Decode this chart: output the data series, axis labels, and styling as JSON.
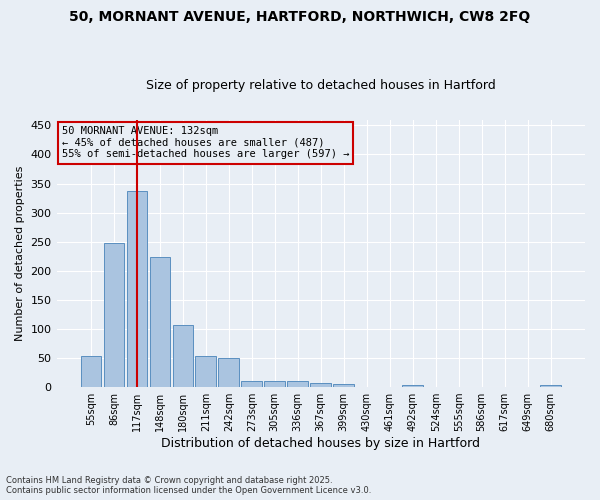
{
  "title_line1": "50, MORNANT AVENUE, HARTFORD, NORTHWICH, CW8 2FQ",
  "title_line2": "Size of property relative to detached houses in Hartford",
  "xlabel": "Distribution of detached houses by size in Hartford",
  "ylabel": "Number of detached properties",
  "categories": [
    "55sqm",
    "86sqm",
    "117sqm",
    "148sqm",
    "180sqm",
    "211sqm",
    "242sqm",
    "273sqm",
    "305sqm",
    "336sqm",
    "367sqm",
    "399sqm",
    "430sqm",
    "461sqm",
    "492sqm",
    "524sqm",
    "555sqm",
    "586sqm",
    "617sqm",
    "649sqm",
    "680sqm"
  ],
  "values": [
    53,
    248,
    338,
    224,
    107,
    53,
    50,
    11,
    10,
    10,
    7,
    6,
    0,
    0,
    4,
    0,
    0,
    0,
    0,
    0,
    3
  ],
  "bar_color": "#aac4e0",
  "bar_edge_color": "#5a8fc0",
  "vline_x_index": 2,
  "vline_color": "#cc0000",
  "annotation_text_line1": "50 MORNANT AVENUE: 132sqm",
  "annotation_text_line2": "← 45% of detached houses are smaller (487)",
  "annotation_text_line3": "55% of semi-detached houses are larger (597) →",
  "annotation_box_color": "#cc0000",
  "ylim": [
    0,
    460
  ],
  "yticks": [
    0,
    50,
    100,
    150,
    200,
    250,
    300,
    350,
    400,
    450
  ],
  "bg_color": "#e8eef5",
  "grid_color": "#ffffff",
  "footer_line1": "Contains HM Land Registry data © Crown copyright and database right 2025.",
  "footer_line2": "Contains public sector information licensed under the Open Government Licence v3.0."
}
